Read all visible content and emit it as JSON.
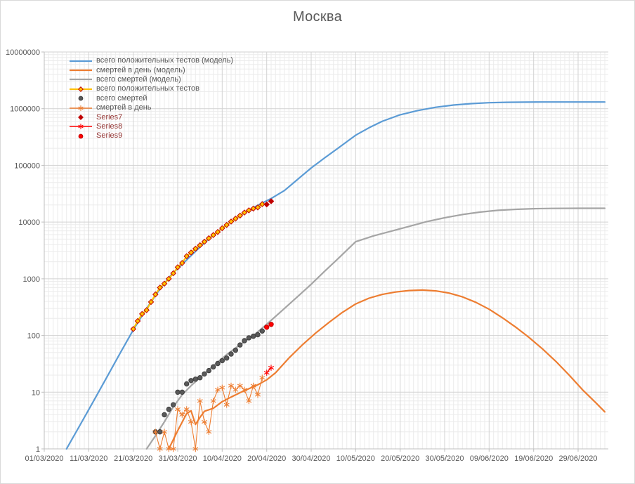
{
  "title": "Москва",
  "colors": {
    "title_text": "#595959",
    "tick_text": "#595959",
    "legend_text": "#595959",
    "series_label_color": "#953735",
    "major_grid": "#d2d2d2",
    "minor_grid": "#ebebeb",
    "axis_line": "#bfbfbf",
    "blue": "#5B9BD5",
    "orange": "#ED7D31",
    "gray": "#A5A5A5",
    "gold": "#FFC000",
    "dark_red": "#C00000",
    "red": "#FF0000"
  },
  "y_axis": {
    "scale": "log",
    "min": 1,
    "max": 10000000,
    "ticks": [
      "1",
      "10",
      "100",
      "1000",
      "10000",
      "100000",
      "1000000",
      "10000000"
    ]
  },
  "x_axis": {
    "ticks": [
      "01/03/2020",
      "11/03/2020",
      "21/03/2020",
      "31/03/2020",
      "10/04/2020",
      "20/04/2020",
      "30/04/2020",
      "10/05/2020",
      "20/05/2020",
      "30/05/2020",
      "09/06/2020",
      "19/06/2020",
      "29/06/2020"
    ]
  },
  "legend": {
    "position": "top-left-inside",
    "items": [
      {
        "key": "tests-model",
        "label": "всего положительных тестов (модель)",
        "label_color": "#595959"
      },
      {
        "key": "deaths-per-day-model",
        "label": "смертей в день (модель)",
        "label_color": "#595959"
      },
      {
        "key": "deaths-total-model",
        "label": "всего смертей (модель)",
        "label_color": "#595959"
      },
      {
        "key": "tests-actual",
        "label": "всего положительных тестов",
        "label_color": "#595959"
      },
      {
        "key": "deaths-total-actual",
        "label": "всего смертей",
        "label_color": "#595959"
      },
      {
        "key": "deaths-per-day-actual",
        "label": "смертей в день",
        "label_color": "#595959"
      },
      {
        "key": "series7",
        "label": "Series7",
        "label_color": "#953735"
      },
      {
        "key": "series8",
        "label": "Series8",
        "label_color": "#953735"
      },
      {
        "key": "series9",
        "label": "Series9",
        "label_color": "#953735"
      }
    ]
  },
  "chart_data": {
    "type": "line",
    "title": "Москва",
    "y_scale": "log",
    "y_range": [
      1,
      10000000
    ],
    "x_range": [
      "01/03/2020",
      "05/07/2020"
    ],
    "grid": "major and minor, both axes",
    "legend_position": "top-left-inside",
    "series": [
      {
        "key": "tests-model",
        "name": "всего положительных тестов (модель)",
        "color": "#5B9BD5",
        "line": true,
        "width": 2.2,
        "marker": "none",
        "points": [
          [
            "06/03/2020",
            1
          ],
          [
            "09/03/2020",
            2.6
          ],
          [
            "12/03/2020",
            6.8
          ],
          [
            "15/03/2020",
            18
          ],
          [
            "18/03/2020",
            48
          ],
          [
            "21/03/2020",
            125
          ],
          [
            "24/03/2020",
            300
          ],
          [
            "27/03/2020",
            660
          ],
          [
            "30/03/2020",
            1300
          ],
          [
            "31/03/2020",
            1500
          ],
          [
            "03/04/2020",
            2550
          ],
          [
            "06/04/2020",
            4300
          ],
          [
            "09/04/2020",
            6800
          ],
          [
            "12/04/2020",
            10200
          ],
          [
            "15/04/2020",
            14500
          ],
          [
            "18/04/2020",
            19800
          ],
          [
            "21/04/2020",
            26000
          ],
          [
            "24/04/2020",
            36000
          ],
          [
            "27/04/2020",
            57000
          ],
          [
            "30/04/2020",
            90000
          ],
          [
            "03/05/2020",
            135000
          ],
          [
            "06/05/2020",
            200000
          ],
          [
            "10/05/2020",
            340000
          ],
          [
            "13/05/2020",
            460000
          ],
          [
            "16/05/2020",
            600000
          ],
          [
            "20/05/2020",
            780000
          ],
          [
            "24/05/2020",
            930000
          ],
          [
            "28/05/2020",
            1060000
          ],
          [
            "01/06/2020",
            1160000
          ],
          [
            "05/06/2020",
            1230000
          ],
          [
            "09/06/2020",
            1275000
          ],
          [
            "13/06/2020",
            1298000
          ],
          [
            "17/06/2020",
            1305000
          ],
          [
            "21/06/2020",
            1310000
          ],
          [
            "29/06/2020",
            1310000
          ],
          [
            "05/07/2020",
            1310000
          ]
        ]
      },
      {
        "key": "deaths-per-day-model",
        "name": "смертей в день (модель)",
        "color": "#ED7D31",
        "line": true,
        "width": 2.2,
        "marker": "none",
        "points": [
          [
            "29/03/2020",
            1
          ],
          [
            "31/03/2020",
            2.1
          ],
          [
            "02/04/2020",
            4.2
          ],
          [
            "03/04/2020",
            4.7
          ],
          [
            "04/04/2020",
            2.7
          ],
          [
            "05/04/2020",
            3.6
          ],
          [
            "06/04/2020",
            4.6
          ],
          [
            "08/04/2020",
            5.2
          ],
          [
            "10/04/2020",
            6.8
          ],
          [
            "12/04/2020",
            8.2
          ],
          [
            "14/04/2020",
            9.8
          ],
          [
            "16/04/2020",
            11.5
          ],
          [
            "18/04/2020",
            13.5
          ],
          [
            "20/04/2020",
            16.5
          ],
          [
            "22/04/2020",
            22
          ],
          [
            "25/04/2020",
            40
          ],
          [
            "28/04/2020",
            68
          ],
          [
            "01/05/2020",
            110
          ],
          [
            "04/05/2020",
            170
          ],
          [
            "07/05/2020",
            255
          ],
          [
            "10/05/2020",
            360
          ],
          [
            "13/05/2020",
            455
          ],
          [
            "16/05/2020",
            530
          ],
          [
            "19/05/2020",
            585
          ],
          [
            "22/05/2020",
            620
          ],
          [
            "25/05/2020",
            632
          ],
          [
            "28/05/2020",
            612
          ],
          [
            "31/05/2020",
            560
          ],
          [
            "03/06/2020",
            480
          ],
          [
            "06/06/2020",
            385
          ],
          [
            "09/06/2020",
            290
          ],
          [
            "12/06/2020",
            205
          ],
          [
            "15/06/2020",
            140
          ],
          [
            "18/06/2020",
            92
          ],
          [
            "21/06/2020",
            58
          ],
          [
            "24/06/2020",
            35
          ],
          [
            "27/06/2020",
            20
          ],
          [
            "30/06/2020",
            11
          ],
          [
            "03/07/2020",
            6.5
          ],
          [
            "05/07/2020",
            4.5
          ]
        ]
      },
      {
        "key": "deaths-total-model",
        "name": "всего смертей (модель)",
        "color": "#A5A5A5",
        "line": true,
        "width": 2.2,
        "marker": "none",
        "points": [
          [
            "24/03/2020",
            1
          ],
          [
            "26/03/2020",
            1.7
          ],
          [
            "28/03/2020",
            3
          ],
          [
            "30/03/2020",
            5.5
          ],
          [
            "01/04/2020",
            9
          ],
          [
            "03/04/2020",
            13
          ],
          [
            "05/04/2020",
            18
          ],
          [
            "07/04/2020",
            25
          ],
          [
            "09/04/2020",
            34
          ],
          [
            "11/04/2020",
            46
          ],
          [
            "13/04/2020",
            60
          ],
          [
            "15/04/2020",
            78
          ],
          [
            "17/04/2020",
            100
          ],
          [
            "19/04/2020",
            135
          ],
          [
            "21/04/2020",
            185
          ],
          [
            "24/04/2020",
            300
          ],
          [
            "27/04/2020",
            490
          ],
          [
            "30/04/2020",
            800
          ],
          [
            "03/05/2020",
            1350
          ],
          [
            "06/05/2020",
            2250
          ],
          [
            "10/05/2020",
            4500
          ],
          [
            "14/05/2020",
            5700
          ],
          [
            "18/05/2020",
            6900
          ],
          [
            "22/05/2020",
            8400
          ],
          [
            "26/05/2020",
            10200
          ],
          [
            "30/05/2020",
            11900
          ],
          [
            "03/06/2020",
            13600
          ],
          [
            "07/06/2020",
            15000
          ],
          [
            "11/06/2020",
            16100
          ],
          [
            "15/06/2020",
            16800
          ],
          [
            "19/06/2020",
            17200
          ],
          [
            "23/06/2020",
            17400
          ],
          [
            "29/06/2020",
            17500
          ],
          [
            "05/07/2020",
            17500
          ]
        ]
      },
      {
        "key": "tests-actual",
        "name": "всего положительных тестов",
        "color": "#FFC000",
        "line": true,
        "width": 2.2,
        "marker": "diamond",
        "marker_fill": "#FFC000",
        "marker_stroke": "#C00000",
        "points": [
          [
            "21/03/2020",
            130
          ],
          [
            "22/03/2020",
            180
          ],
          [
            "23/03/2020",
            240
          ],
          [
            "24/03/2020",
            280
          ],
          [
            "25/03/2020",
            390
          ],
          [
            "26/03/2020",
            530
          ],
          [
            "27/03/2020",
            700
          ],
          [
            "28/03/2020",
            820
          ],
          [
            "29/03/2020",
            1000
          ],
          [
            "30/03/2020",
            1250
          ],
          [
            "31/03/2020",
            1600
          ],
          [
            "01/04/2020",
            1900
          ],
          [
            "02/04/2020",
            2500
          ],
          [
            "03/04/2020",
            2900
          ],
          [
            "04/04/2020",
            3400
          ],
          [
            "05/04/2020",
            3900
          ],
          [
            "06/04/2020",
            4500
          ],
          [
            "07/04/2020",
            5200
          ],
          [
            "08/04/2020",
            5900
          ],
          [
            "09/04/2020",
            6700
          ],
          [
            "10/04/2020",
            7800
          ],
          [
            "11/04/2020",
            8900
          ],
          [
            "12/04/2020",
            10200
          ],
          [
            "13/04/2020",
            11500
          ],
          [
            "14/04/2020",
            13000
          ],
          [
            "15/04/2020",
            14700
          ],
          [
            "16/04/2020",
            16100
          ],
          [
            "17/04/2020",
            17300
          ],
          [
            "18/04/2020",
            18100
          ],
          [
            "19/04/2020",
            20700
          ]
        ]
      },
      {
        "key": "deaths-total-actual",
        "name": "всего смертей",
        "color": "#595959",
        "line": false,
        "marker": "circle",
        "marker_fill": "#595959",
        "marker_stroke": "#3f3f3f",
        "points": [
          [
            "26/03/2020",
            2
          ],
          [
            "27/03/2020",
            2
          ],
          [
            "28/03/2020",
            4
          ],
          [
            "29/03/2020",
            5
          ],
          [
            "30/03/2020",
            6
          ],
          [
            "31/03/2020",
            10
          ],
          [
            "01/04/2020",
            10
          ],
          [
            "02/04/2020",
            14
          ],
          [
            "03/04/2020",
            16
          ],
          [
            "04/04/2020",
            17
          ],
          [
            "05/04/2020",
            18
          ],
          [
            "06/04/2020",
            21
          ],
          [
            "07/04/2020",
            24
          ],
          [
            "08/04/2020",
            28
          ],
          [
            "09/04/2020",
            32
          ],
          [
            "10/04/2020",
            36
          ],
          [
            "11/04/2020",
            40
          ],
          [
            "12/04/2020",
            47
          ],
          [
            "13/04/2020",
            55
          ],
          [
            "14/04/2020",
            68
          ],
          [
            "15/04/2020",
            81
          ],
          [
            "16/04/2020",
            91
          ],
          [
            "17/04/2020",
            97
          ],
          [
            "18/04/2020",
            103
          ],
          [
            "19/04/2020",
            120
          ]
        ]
      },
      {
        "key": "deaths-per-day-actual",
        "name": "смертей в день",
        "color": "#ED7D31",
        "line": true,
        "width": 1.1,
        "marker": "asterisk",
        "marker_stroke": "#ED7D31",
        "points": [
          [
            "26/03/2020",
            2
          ],
          [
            "27/03/2020",
            1
          ],
          [
            "28/03/2020",
            2
          ],
          [
            "29/03/2020",
            1
          ],
          [
            "30/03/2020",
            1
          ],
          [
            "31/03/2020",
            5
          ],
          [
            "01/04/2020",
            4
          ],
          [
            "02/04/2020",
            5
          ],
          [
            "03/04/2020",
            3
          ],
          [
            "04/04/2020",
            1
          ],
          [
            "05/04/2020",
            7
          ],
          [
            "06/04/2020",
            3
          ],
          [
            "07/04/2020",
            2
          ],
          [
            "08/04/2020",
            7
          ],
          [
            "09/04/2020",
            11
          ],
          [
            "10/04/2020",
            12
          ],
          [
            "11/04/2020",
            6
          ],
          [
            "12/04/2020",
            13
          ],
          [
            "13/04/2020",
            11
          ],
          [
            "14/04/2020",
            13
          ],
          [
            "15/04/2020",
            11
          ],
          [
            "16/04/2020",
            7
          ],
          [
            "17/04/2020",
            13
          ],
          [
            "18/04/2020",
            9
          ],
          [
            "19/04/2020",
            18
          ]
        ]
      },
      {
        "key": "series7",
        "name": "Series7",
        "color": "#C00000",
        "line": false,
        "marker": "diamond",
        "marker_fill": "#C00000",
        "marker_stroke": "#C00000",
        "points": [
          [
            "20/04/2020",
            20500
          ],
          [
            "21/04/2020",
            23300
          ]
        ]
      },
      {
        "key": "series8",
        "name": "Series8",
        "color": "#FF0000",
        "line": true,
        "width": 1.3,
        "marker": "asterisk",
        "marker_stroke": "#FF0000",
        "points": [
          [
            "20/04/2020",
            22
          ],
          [
            "21/04/2020",
            27
          ]
        ]
      },
      {
        "key": "series9",
        "name": "Series9",
        "color": "#FF0000",
        "line": false,
        "marker": "circle",
        "marker_fill": "#FF0000",
        "marker_stroke": "#C00000",
        "points": [
          [
            "20/04/2020",
            140
          ],
          [
            "21/04/2020",
            157
          ]
        ]
      }
    ]
  }
}
